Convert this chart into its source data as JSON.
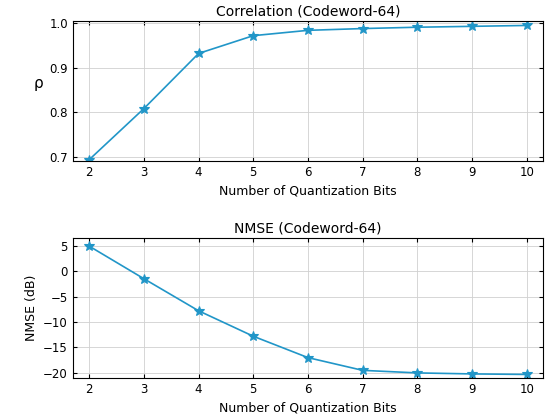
{
  "x": [
    2,
    3,
    4,
    5,
    6,
    7,
    8,
    9,
    10
  ],
  "corr_y": [
    0.693,
    0.808,
    0.932,
    0.972,
    0.984,
    0.988,
    0.991,
    0.993,
    0.995
  ],
  "nmse_y": [
    4.9,
    -1.5,
    -7.8,
    -12.8,
    -17.0,
    -19.5,
    -20.0,
    -20.2,
    -20.3
  ],
  "corr_title": "Correlation (Codeword-64)",
  "nmse_title": "NMSE (Codeword-64)",
  "xlabel": "Number of Quantization Bits",
  "corr_ylabel": "ρ",
  "nmse_ylabel": "NMSE (dB)",
  "corr_ylim": [
    0.69,
    1.005
  ],
  "nmse_ylim": [
    -21.0,
    6.5
  ],
  "xlim": [
    1.7,
    10.3
  ],
  "corr_yticks": [
    0.7,
    0.8,
    0.9,
    1.0
  ],
  "nmse_yticks": [
    -20,
    -15,
    -10,
    -5,
    0,
    5
  ],
  "xticks": [
    2,
    3,
    4,
    5,
    6,
    7,
    8,
    9,
    10
  ],
  "line_color": "#2196c8",
  "marker": "*",
  "markersize": 7,
  "linewidth": 1.2,
  "title_fontsize": 10,
  "label_fontsize": 9,
  "tick_fontsize": 8.5,
  "grid_color": "#d0d0d0",
  "grid_linewidth": 0.6
}
